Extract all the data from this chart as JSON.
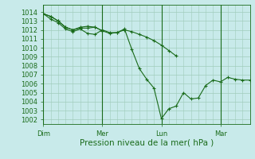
{
  "bg_color": "#c8eaea",
  "grid_color": "#a0ccbb",
  "line_color": "#1a6b1a",
  "marker_color": "#1a6b1a",
  "ylabel_ticks": [
    1002,
    1003,
    1004,
    1005,
    1006,
    1007,
    1008,
    1009,
    1010,
    1011,
    1012,
    1013,
    1014
  ],
  "ylim": [
    1001.5,
    1014.8
  ],
  "xlabel": "Pression niveau de la mer( hPa )",
  "xlabel_fontsize": 7.5,
  "tick_fontsize": 6,
  "day_labels": [
    "Dim",
    "Mer",
    "Lun",
    "Mar"
  ],
  "day_positions": [
    0,
    48,
    96,
    144
  ],
  "total_hours": 168,
  "series": [
    {
      "x": [
        0,
        6,
        12,
        18,
        24,
        30,
        36,
        42,
        48,
        54,
        60,
        66,
        72,
        78,
        84,
        90,
        96,
        102,
        108,
        114,
        120,
        126,
        132,
        138,
        144,
        150,
        156,
        162,
        168
      ],
      "y": [
        1013.8,
        1013.2,
        1012.8,
        1012.1,
        1011.8,
        1012.1,
        1011.6,
        1011.5,
        1012.0,
        1011.7,
        1011.7,
        1012.1,
        1009.8,
        1007.7,
        1006.5,
        1005.5,
        1002.1,
        1003.2,
        1003.5,
        1005.0,
        1004.3,
        1004.4,
        1005.8,
        1006.4,
        1006.2,
        1006.7,
        1006.5,
        1006.4,
        1006.4
      ]
    },
    {
      "x": [
        0,
        6,
        12,
        18,
        24,
        30,
        36,
        42,
        48,
        54,
        60,
        66,
        72,
        78,
        84,
        90,
        96,
        102,
        108
      ],
      "y": [
        1013.8,
        1013.5,
        1013.0,
        1012.3,
        1012.0,
        1012.2,
        1012.2,
        1012.3,
        1011.9,
        1011.6,
        1011.7,
        1012.0,
        1011.8,
        1011.5,
        1011.2,
        1010.8,
        1010.3,
        1009.7,
        1009.1
      ]
    },
    {
      "x": [
        0,
        6,
        12,
        18,
        24,
        30,
        36,
        42,
        48
      ],
      "y": [
        1013.8,
        1013.5,
        1013.0,
        1012.3,
        1012.0,
        1012.3,
        1012.4,
        1012.3,
        1011.9
      ]
    }
  ]
}
